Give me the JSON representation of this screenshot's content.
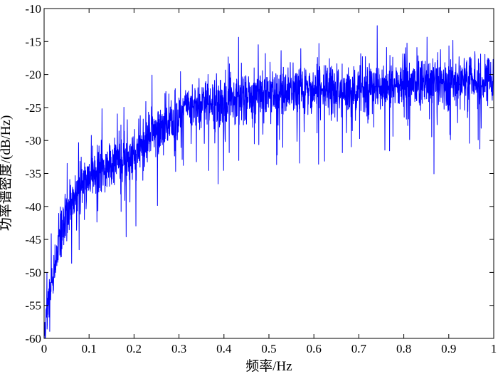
{
  "chart_data": {
    "type": "line",
    "title": "",
    "xlabel": "频率/Hz",
    "ylabel": "功率谱密度/(dB/Hz)",
    "xlim": [
      0,
      1
    ],
    "ylim": [
      -60,
      -10
    ],
    "x_ticks": [
      {
        "value": 0,
        "label": "0"
      },
      {
        "value": 0.1,
        "label": "0.1"
      },
      {
        "value": 0.2,
        "label": "0.2"
      },
      {
        "value": 0.3,
        "label": "0.3"
      },
      {
        "value": 0.4,
        "label": "0.4"
      },
      {
        "value": 0.5,
        "label": "0.5"
      },
      {
        "value": 0.6,
        "label": "0.6"
      },
      {
        "value": 0.7,
        "label": "0.7"
      },
      {
        "value": 0.8,
        "label": "0.8"
      },
      {
        "value": 0.9,
        "label": "0.9"
      },
      {
        "value": 1,
        "label": "1"
      }
    ],
    "y_ticks": [
      {
        "value": -10,
        "label": "-10"
      },
      {
        "value": -15,
        "label": "-15"
      },
      {
        "value": -20,
        "label": "-20"
      },
      {
        "value": -25,
        "label": "-25"
      },
      {
        "value": -30,
        "label": "-30"
      },
      {
        "value": -35,
        "label": "-35"
      },
      {
        "value": -40,
        "label": "-40"
      },
      {
        "value": -45,
        "label": "-45"
      },
      {
        "value": -50,
        "label": "-50"
      },
      {
        "value": -55,
        "label": "-55"
      },
      {
        "value": -60,
        "label": "-60"
      }
    ],
    "grid": false,
    "legend": "none",
    "series": [
      {
        "color": "#0000ff",
        "x": [
          0,
          0.005,
          0.01,
          0.02,
          0.03,
          0.04,
          0.05,
          0.06,
          0.07,
          0.08,
          0.09,
          0.1,
          0.12,
          0.14,
          0.16,
          0.18,
          0.2,
          0.22,
          0.24,
          0.26,
          0.28,
          0.3,
          0.32,
          0.35,
          0.38,
          0.4,
          0.45,
          0.5,
          0.55,
          0.6,
          0.65,
          0.7,
          0.75,
          0.8,
          0.85,
          0.9,
          0.95,
          1
        ],
        "y": [
          -59,
          -57,
          -54,
          -51,
          -47,
          -43,
          -41,
          -39.5,
          -38,
          -37,
          -36,
          -35.5,
          -34.5,
          -34,
          -33.5,
          -33,
          -32.5,
          -31,
          -29.5,
          -28.5,
          -27.5,
          -26,
          -25,
          -24.5,
          -24,
          -24,
          -23.5,
          -23,
          -23,
          -22.5,
          -22.5,
          -22,
          -22,
          -21.5,
          -21.5,
          -21.5,
          -21,
          -21
        ]
      }
    ],
    "noise_amplitude_db": 2.5
  }
}
